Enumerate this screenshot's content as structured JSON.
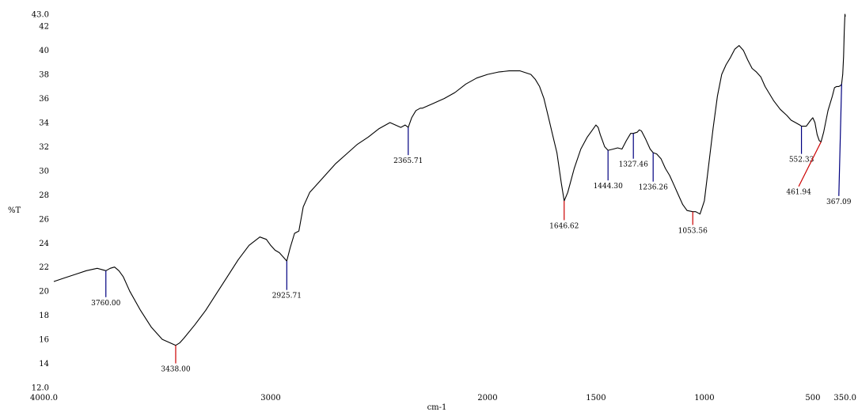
{
  "chart_data": {
    "type": "line",
    "title": "",
    "xlabel": "cm-1",
    "ylabel": "%T",
    "xlim": [
      4000,
      350
    ],
    "ylim": [
      12,
      43
    ],
    "x_ticks": [
      4000,
      3000,
      2000,
      1500,
      1000,
      500,
      350
    ],
    "x_tick_labels": [
      "4000.0",
      "3000",
      "2000",
      "1500",
      "1000",
      "500",
      "350.0"
    ],
    "y_ticks": [
      12,
      14,
      16,
      18,
      20,
      22,
      24,
      26,
      28,
      30,
      32,
      34,
      36,
      38,
      40,
      42,
      43
    ],
    "y_tick_labels": [
      "12.0",
      "14",
      "16",
      "18",
      "20",
      "22",
      "24",
      "26",
      "28",
      "30",
      "32",
      "34",
      "36",
      "38",
      "40",
      "42",
      "43.0"
    ],
    "grid": false,
    "legend": "none",
    "line_color": "#000000",
    "series": [
      {
        "x": [
          4000,
          3950,
          3900,
          3850,
          3800,
          3780,
          3760,
          3740,
          3720,
          3700,
          3680,
          3650,
          3600,
          3550,
          3500,
          3450,
          3438,
          3420,
          3400,
          3350,
          3300,
          3250,
          3200,
          3150,
          3100,
          3050,
          3020,
          3000,
          2980,
          2960,
          2940,
          2925.71,
          2910,
          2890,
          2870,
          2850,
          2820,
          2800,
          2750,
          2700,
          2650,
          2600,
          2550,
          2500,
          2450,
          2400,
          2380,
          2365.71,
          2350,
          2330,
          2310,
          2300,
          2250,
          2200,
          2150,
          2100,
          2050,
          2000,
          1950,
          1900,
          1850,
          1800,
          1780,
          1760,
          1740,
          1720,
          1700,
          1680,
          1660,
          1646.62,
          1630,
          1600,
          1570,
          1540,
          1520,
          1500,
          1490,
          1480,
          1470,
          1460,
          1444.3,
          1420,
          1400,
          1380,
          1360,
          1340,
          1327.46,
          1310,
          1300,
          1290,
          1270,
          1250,
          1236.26,
          1220,
          1200,
          1180,
          1160,
          1140,
          1120,
          1100,
          1080,
          1053.56,
          1040,
          1020,
          1000,
          980,
          960,
          940,
          920,
          900,
          880,
          860,
          840,
          820,
          800,
          780,
          760,
          740,
          720,
          700,
          680,
          650,
          620,
          600,
          580,
          560,
          552.33,
          530,
          510,
          500,
          490,
          480,
          470,
          461.94,
          450,
          430,
          410,
          400,
          390,
          380,
          370,
          367.09,
          362,
          358,
          355,
          352,
          350
        ],
        "y": [
          20.8,
          21.1,
          21.4,
          21.7,
          21.9,
          21.8,
          21.7,
          21.9,
          22.0,
          21.7,
          21.2,
          20.0,
          18.4,
          17.0,
          16.0,
          15.6,
          15.5,
          15.7,
          16.1,
          17.2,
          18.4,
          19.8,
          21.2,
          22.6,
          23.8,
          24.5,
          24.3,
          23.8,
          23.4,
          23.2,
          22.8,
          22.5,
          23.6,
          24.8,
          25.0,
          27.0,
          28.2,
          28.6,
          29.6,
          30.6,
          31.4,
          32.2,
          32.8,
          33.5,
          34.0,
          33.6,
          33.8,
          33.6,
          34.4,
          35.0,
          35.2,
          35.2,
          35.6,
          36.0,
          36.5,
          37.2,
          37.7,
          38.0,
          38.2,
          38.3,
          38.3,
          38.0,
          37.6,
          37.0,
          36.0,
          34.5,
          33.0,
          31.5,
          29.0,
          27.5,
          28.2,
          30.2,
          31.8,
          32.8,
          33.3,
          33.8,
          33.6,
          33.0,
          32.5,
          32.0,
          31.7,
          31.8,
          31.9,
          31.8,
          32.5,
          33.1,
          33.1,
          33.2,
          33.4,
          33.3,
          32.6,
          31.8,
          31.5,
          31.4,
          31.0,
          30.2,
          29.6,
          28.8,
          28.0,
          27.2,
          26.7,
          26.6,
          26.6,
          26.4,
          27.5,
          30.5,
          33.5,
          36.2,
          38.0,
          38.8,
          39.4,
          40.1,
          40.4,
          40.0,
          39.2,
          38.5,
          38.2,
          37.8,
          37.0,
          36.4,
          35.8,
          35.1,
          34.6,
          34.2,
          34.0,
          33.8,
          33.7,
          33.7,
          34.2,
          34.4,
          34.0,
          33.0,
          32.5,
          32.4,
          33.2,
          35.0,
          36.2,
          36.9,
          37.0,
          37.0,
          37.1,
          37.2,
          38.0,
          39.5,
          41.5,
          43.0,
          42.8
        ]
      }
    ],
    "peaks": [
      {
        "label": "3760.00",
        "x": 3760,
        "color": "#000080",
        "label_x": 3760,
        "label_y": 19.5
      },
      {
        "label": "3438.00",
        "x": 3438,
        "color": "#cc0000",
        "label_x": 3438,
        "label_y": 14.0
      },
      {
        "label": "2925.71",
        "x": 2925.71,
        "color": "#000080",
        "label_x": 2925.71,
        "label_y": 20.1
      },
      {
        "label": "2365.71",
        "x": 2365.71,
        "color": "#000080",
        "label_x": 2365.71,
        "label_y": 31.3
      },
      {
        "label": "1646.62",
        "x": 1646.62,
        "color": "#cc0000",
        "label_x": 1646.62,
        "label_y": 25.9
      },
      {
        "label": "1444.30",
        "x": 1444.3,
        "color": "#000080",
        "label_x": 1444.3,
        "label_y": 29.2
      },
      {
        "label": "1327.46",
        "x": 1327.46,
        "color": "#000080",
        "label_x": 1327.46,
        "label_y": 31.0
      },
      {
        "label": "1236.26",
        "x": 1236.26,
        "color": "#000080",
        "label_x": 1236.26,
        "label_y": 29.1
      },
      {
        "label": "1053.56",
        "x": 1053.56,
        "color": "#cc0000",
        "label_x": 1053.56,
        "label_y": 25.5
      },
      {
        "label": "552.33",
        "x": 552.33,
        "color": "#000080",
        "label_x": 552.33,
        "label_y": 31.4
      },
      {
        "label": "461.94",
        "x": 461.94,
        "color": "#cc0000",
        "label_x": 565,
        "label_y": 28.7
      },
      {
        "label": "367.09",
        "x": 367.09,
        "color": "#000080",
        "label_x": 380,
        "label_y": 27.9
      }
    ]
  }
}
